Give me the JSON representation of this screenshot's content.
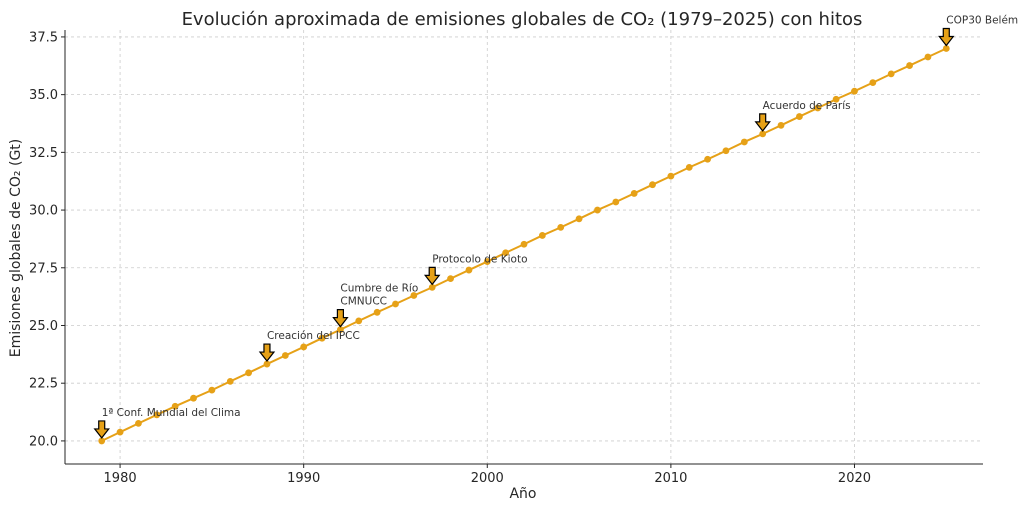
{
  "chart_data": {
    "type": "line",
    "title": "Evolución aproximada de emisiones globales de CO₂ (1979–2025) con hitos",
    "xlabel": "Año",
    "ylabel": "Emisiones globales de CO₂ (Gt)",
    "xlim": [
      1977,
      2027
    ],
    "ylim": [
      19,
      37.8
    ],
    "xticks": [
      1980,
      1990,
      2000,
      2010,
      2020
    ],
    "xtick_labels": [
      "1980",
      "1990",
      "2000",
      "2010",
      "2020"
    ],
    "yticks": [
      20.0,
      22.5,
      25.0,
      27.5,
      30.0,
      32.5,
      35.0,
      37.5
    ],
    "ytick_labels": [
      "20.0",
      "22.5",
      "25.0",
      "27.5",
      "30.0",
      "32.5",
      "35.0",
      "37.5"
    ],
    "grid": true,
    "colors": {
      "line": "#e6a117",
      "marker": "#e6a117",
      "arrow_fill": "#e6a117",
      "arrow_stroke": "#000000"
    },
    "series": [
      {
        "name": "Emisiones",
        "x": [
          1979,
          1980,
          1981,
          1982,
          1983,
          1984,
          1985,
          1986,
          1987,
          1988,
          1989,
          1990,
          1991,
          1992,
          1993,
          1994,
          1995,
          1996,
          1997,
          1998,
          1999,
          2000,
          2001,
          2002,
          2003,
          2004,
          2005,
          2006,
          2007,
          2008,
          2009,
          2010,
          2011,
          2012,
          2013,
          2014,
          2015,
          2016,
          2017,
          2018,
          2019,
          2020,
          2021,
          2022,
          2023,
          2024,
          2025
        ],
        "values": [
          20.0,
          20.38,
          20.76,
          21.13,
          21.5,
          21.85,
          22.2,
          22.58,
          22.95,
          23.33,
          23.7,
          24.07,
          24.45,
          24.82,
          25.2,
          25.57,
          25.93,
          26.3,
          26.65,
          27.03,
          27.4,
          27.77,
          28.15,
          28.52,
          28.9,
          29.25,
          29.62,
          30.0,
          30.35,
          30.72,
          31.1,
          31.47,
          31.85,
          32.2,
          32.57,
          32.95,
          33.3,
          33.67,
          34.05,
          34.42,
          34.8,
          35.15,
          35.52,
          35.9,
          36.26,
          36.63,
          37.0
        ]
      }
    ],
    "annotations": [
      {
        "year": 1979,
        "value": 20.0,
        "label": "1ª Conf. Mundial del Clima"
      },
      {
        "year": 1988,
        "value": 23.33,
        "label": "Creación del IPCC"
      },
      {
        "year": 1992,
        "value": 24.82,
        "label": "Cumbre de Río\nCMNUCC"
      },
      {
        "year": 1997,
        "value": 26.65,
        "label": "Protocolo de Kioto"
      },
      {
        "year": 2015,
        "value": 33.3,
        "label": "Acuerdo de París"
      },
      {
        "year": 2025,
        "value": 37.0,
        "label": "COP30 Belém"
      }
    ]
  }
}
